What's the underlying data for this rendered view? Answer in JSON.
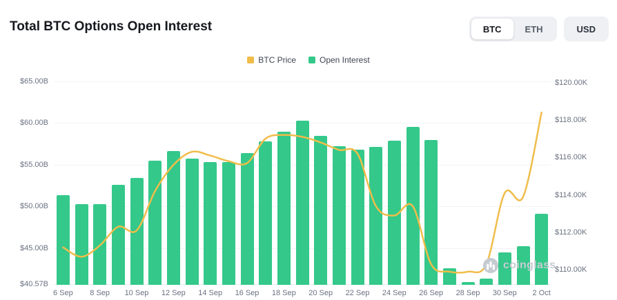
{
  "header": {
    "title": "Total BTC Options Open Interest",
    "coin_toggle": {
      "options": [
        "BTC",
        "ETH"
      ],
      "selected": "BTC"
    },
    "currency_button": "USD"
  },
  "watermark": "coinglass",
  "chart_data": {
    "type": "bar+line",
    "title": "Total BTC Options Open Interest",
    "x": [
      "6 Sep",
      "7 Sep",
      "8 Sep",
      "9 Sep",
      "10 Sep",
      "11 Sep",
      "12 Sep",
      "13 Sep",
      "14 Sep",
      "15 Sep",
      "16 Sep",
      "17 Sep",
      "18 Sep",
      "19 Sep",
      "20 Sep",
      "21 Sep",
      "22 Sep",
      "23 Sep",
      "24 Sep",
      "25 Sep",
      "26 Sep",
      "27 Sep",
      "28 Sep",
      "29 Sep",
      "30 Sep",
      "1 Oct",
      "2 Oct"
    ],
    "x_tick_indices": [
      0,
      2,
      4,
      6,
      8,
      10,
      12,
      14,
      16,
      18,
      20,
      22,
      24,
      26
    ],
    "x_tick_labels": [
      "6 Sep",
      "8 Sep",
      "10 Sep",
      "12 Sep",
      "14 Sep",
      "16 Sep",
      "18 Sep",
      "20 Sep",
      "22 Sep",
      "24 Sep",
      "26 Sep",
      "28 Sep",
      "30 Sep",
      "2 Oct"
    ],
    "series": [
      {
        "name": "BTC Price",
        "type": "line",
        "axis": "right",
        "unit": "$K",
        "color": "#F0BD4A",
        "values": [
          111.2,
          110.7,
          111.3,
          112.3,
          112.1,
          114.2,
          115.6,
          116.3,
          116.1,
          115.8,
          115.7,
          117.0,
          117.2,
          117.1,
          116.8,
          116.4,
          116.2,
          113.4,
          112.9,
          113.4,
          110.3,
          109.9,
          109.9,
          110.3,
          114.1,
          113.9,
          118.4
        ]
      },
      {
        "name": "Open Interest",
        "type": "bar",
        "axis": "left",
        "unit": "$B",
        "color": "#34C88A",
        "values": [
          51.3,
          50.3,
          50.3,
          52.6,
          53.4,
          55.5,
          56.6,
          55.7,
          55.3,
          55.3,
          56.4,
          57.8,
          59.0,
          60.3,
          58.5,
          57.2,
          56.8,
          57.1,
          57.9,
          59.5,
          58.0,
          42.6,
          40.9,
          41.3,
          44.5,
          45.2,
          49.1
        ]
      }
    ],
    "left_axis": {
      "tick_labels": [
        "$65.00B",
        "$60.00B",
        "$55.00B",
        "$50.00B",
        "$45.00B",
        "$40.57B"
      ],
      "tick_values": [
        65,
        60,
        55,
        50,
        45,
        40.57
      ],
      "min": 40.57,
      "max": 66.0
    },
    "right_axis": {
      "tick_labels": [
        "$120.00K",
        "$118.00K",
        "$116.00K",
        "$114.00K",
        "$112.00K",
        "$110.00K"
      ],
      "tick_values": [
        120,
        118,
        116,
        114,
        112,
        110
      ],
      "min": 109.2,
      "max": 120.5
    },
    "grid": true,
    "legend_position": "top-center"
  }
}
